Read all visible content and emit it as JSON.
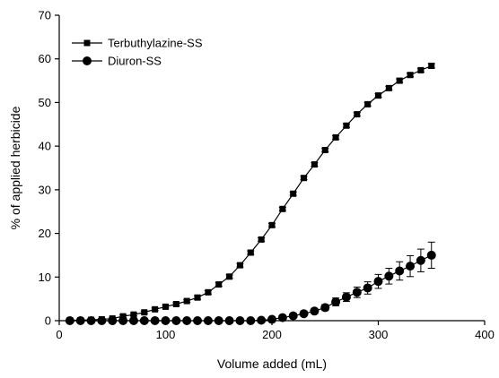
{
  "chart_data": {
    "type": "scatter",
    "title": "",
    "xlabel": "Volume added  (mL)",
    "ylabel": "% of applied herbicide",
    "xlim": [
      0,
      400
    ],
    "ylim": [
      0,
      70
    ],
    "xticks": [
      0,
      100,
      200,
      300,
      400
    ],
    "yticks": [
      0,
      10,
      20,
      30,
      40,
      50,
      60,
      70
    ],
    "grid": false,
    "legend_position": "top-left",
    "series": [
      {
        "name": "Terbuthylazine-SS",
        "marker": "square",
        "line": "solid",
        "color": "#000000",
        "x": [
          10,
          20,
          30,
          40,
          50,
          60,
          70,
          80,
          90,
          100,
          110,
          120,
          130,
          140,
          150,
          160,
          170,
          180,
          190,
          200,
          210,
          220,
          230,
          240,
          250,
          260,
          270,
          280,
          290,
          300,
          310,
          320,
          330,
          340,
          350
        ],
        "y": [
          0.1,
          0.1,
          0.2,
          0.3,
          0.5,
          1.0,
          1.4,
          1.9,
          2.6,
          3.2,
          3.8,
          4.5,
          5.3,
          6.5,
          8.3,
          10.1,
          12.7,
          15.6,
          18.6,
          21.9,
          25.6,
          29.1,
          32.7,
          35.8,
          39.1,
          42.0,
          44.7,
          47.3,
          49.6,
          51.6,
          53.3,
          55.0,
          56.3,
          57.4,
          58.4
        ],
        "error": [
          0.2,
          0.2,
          0.2,
          0.2,
          0.2,
          0.3,
          0.3,
          0.3,
          0.3,
          0.3,
          0.3,
          0.3,
          0.4,
          0.4,
          0.4,
          0.4,
          0.4,
          0.4,
          0.4,
          0.4,
          0.4,
          0.4,
          0.4,
          0.4,
          0.4,
          0.4,
          0.4,
          0.4,
          0.4,
          0.4,
          0.4,
          0.4,
          0.4,
          0.4,
          0.5
        ]
      },
      {
        "name": "Diuron-SS",
        "marker": "circle",
        "line": "solid",
        "color": "#000000",
        "x": [
          10,
          20,
          30,
          40,
          50,
          60,
          70,
          80,
          90,
          100,
          110,
          120,
          130,
          140,
          150,
          160,
          170,
          180,
          190,
          200,
          210,
          220,
          230,
          240,
          250,
          260,
          270,
          280,
          290,
          300,
          310,
          320,
          330,
          340,
          350
        ],
        "y": [
          0,
          0,
          0,
          0,
          0,
          0,
          0,
          0,
          0,
          0,
          0,
          0,
          0,
          0,
          0,
          0,
          0,
          0,
          0.1,
          0.3,
          0.7,
          1.1,
          1.6,
          2.2,
          3.0,
          4.3,
          5.4,
          6.5,
          7.5,
          9.0,
          10.2,
          11.4,
          12.5,
          13.8,
          15.0
        ],
        "error": [
          0,
          0,
          0,
          0,
          0,
          0,
          0,
          0,
          0,
          0,
          0,
          0,
          0,
          0,
          0,
          0,
          0,
          0,
          0,
          0.2,
          0.3,
          0.4,
          0.5,
          0.6,
          0.7,
          0.9,
          1.0,
          1.2,
          1.4,
          1.6,
          1.8,
          2.1,
          2.4,
          2.6,
          3.0
        ]
      }
    ]
  }
}
